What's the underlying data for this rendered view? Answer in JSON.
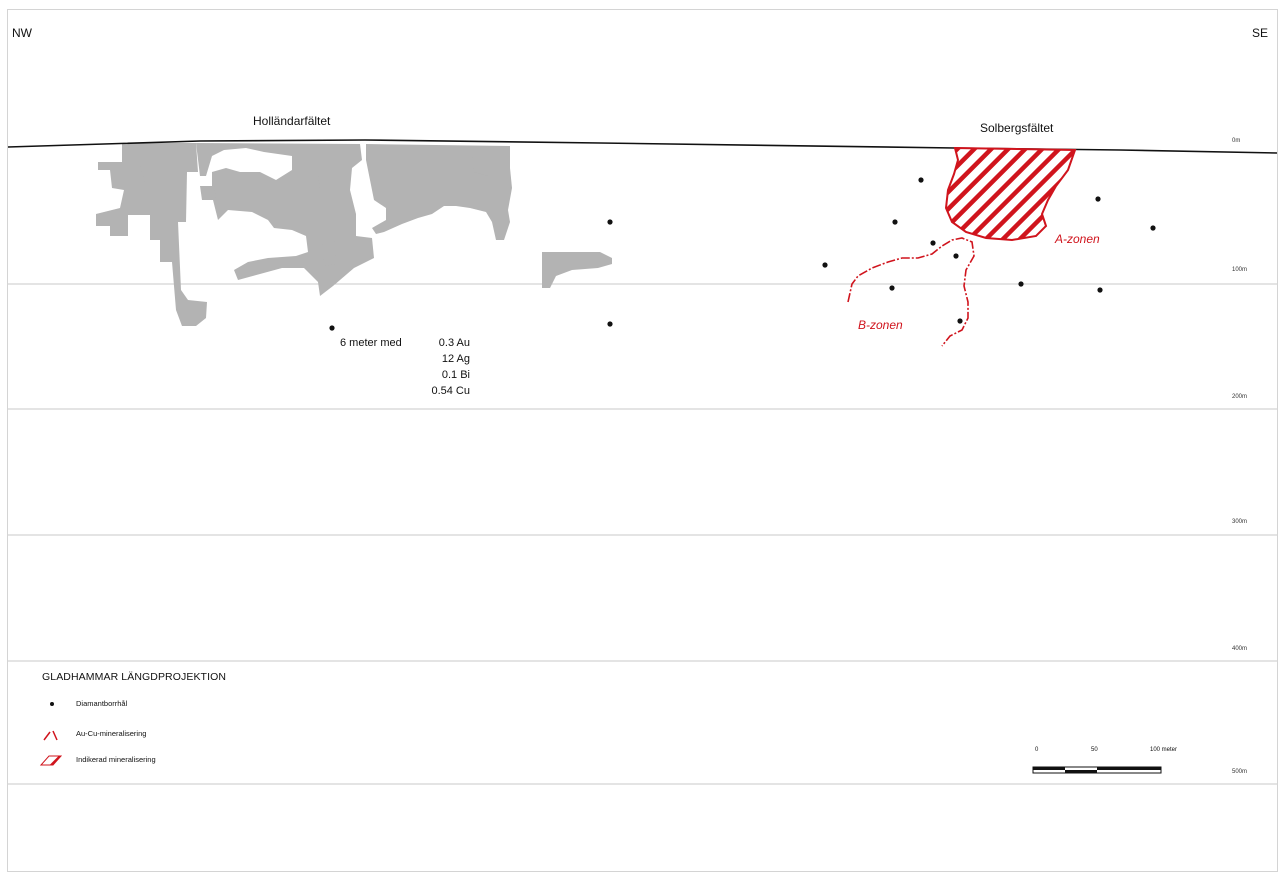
{
  "directions": {
    "left": "NW",
    "right": "SE"
  },
  "fields": {
    "left": "Holländarfältet",
    "right": "Solbergsfältet"
  },
  "depth_labels": [
    "0m",
    "100m",
    "200m",
    "300m",
    "400m",
    "500m"
  ],
  "assay": {
    "intro": "6 meter med",
    "values": [
      "0.3 Au",
      "12 Ag",
      "0.1 Bi",
      "0.54 Cu"
    ]
  },
  "zones": {
    "a": "A-zonen",
    "b": "B-zonen"
  },
  "legend": {
    "title": "GLADHAMMAR LÄNGDPROJEKTION",
    "items": [
      {
        "label": "Diamantborrhål",
        "icon": "dot-icon"
      },
      {
        "label": "Au-Cu-mineralisering",
        "icon": "red-outline-icon"
      },
      {
        "label": "Indikerad mineralisering",
        "icon": "red-hatch-icon"
      }
    ]
  },
  "scale_bar": {
    "labels": [
      "0",
      "50",
      "100 meter"
    ]
  },
  "colors": {
    "mineralisation": "#d0141d",
    "workings": "#b3b3b3",
    "grid": "#c8c8c8"
  }
}
